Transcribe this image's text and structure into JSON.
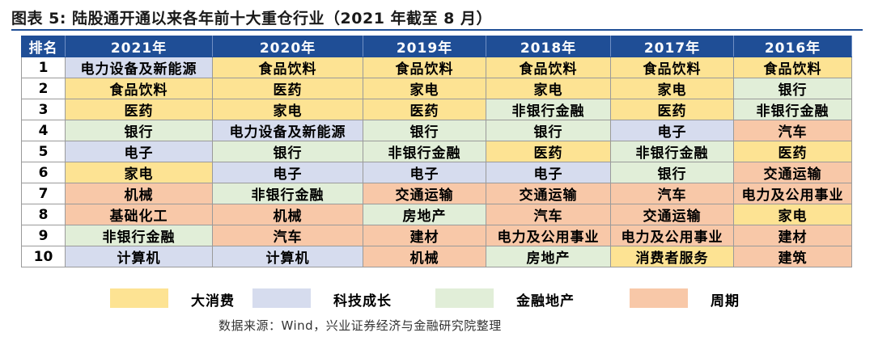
{
  "title": "图表 5: 陆股通开通以来各年前十大重仓行业（2021 年截至 8 月）",
  "header": {
    "rank": "排名",
    "years": [
      "2021年",
      "2020年",
      "2019年",
      "2018年",
      "2017年",
      "2016年"
    ]
  },
  "rows": [
    {
      "rank": "1",
      "cells": [
        {
          "text": "电力设备及新能源",
          "cat": "tech"
        },
        {
          "text": "食品饮料",
          "cat": "consumer"
        },
        {
          "text": "食品饮料",
          "cat": "consumer"
        },
        {
          "text": "食品饮料",
          "cat": "consumer"
        },
        {
          "text": "食品饮料",
          "cat": "consumer"
        },
        {
          "text": "食品饮料",
          "cat": "consumer"
        }
      ]
    },
    {
      "rank": "2",
      "cells": [
        {
          "text": "食品饮料",
          "cat": "consumer"
        },
        {
          "text": "医药",
          "cat": "consumer"
        },
        {
          "text": "家电",
          "cat": "consumer"
        },
        {
          "text": "家电",
          "cat": "consumer"
        },
        {
          "text": "家电",
          "cat": "consumer"
        },
        {
          "text": "银行",
          "cat": "finance"
        }
      ]
    },
    {
      "rank": "3",
      "cells": [
        {
          "text": "医药",
          "cat": "consumer"
        },
        {
          "text": "家电",
          "cat": "consumer"
        },
        {
          "text": "医药",
          "cat": "consumer"
        },
        {
          "text": "非银行金融",
          "cat": "finance"
        },
        {
          "text": "医药",
          "cat": "consumer"
        },
        {
          "text": "非银行金融",
          "cat": "finance"
        }
      ]
    },
    {
      "rank": "4",
      "cells": [
        {
          "text": "银行",
          "cat": "finance"
        },
        {
          "text": "电力设备及新能源",
          "cat": "tech"
        },
        {
          "text": "银行",
          "cat": "finance"
        },
        {
          "text": "银行",
          "cat": "finance"
        },
        {
          "text": "电子",
          "cat": "tech"
        },
        {
          "text": "汽车",
          "cat": "cycle"
        }
      ]
    },
    {
      "rank": "5",
      "cells": [
        {
          "text": "电子",
          "cat": "tech"
        },
        {
          "text": "银行",
          "cat": "finance"
        },
        {
          "text": "非银行金融",
          "cat": "finance"
        },
        {
          "text": "医药",
          "cat": "consumer"
        },
        {
          "text": "非银行金融",
          "cat": "finance"
        },
        {
          "text": "医药",
          "cat": "consumer"
        }
      ]
    },
    {
      "rank": "6",
      "cells": [
        {
          "text": "家电",
          "cat": "consumer"
        },
        {
          "text": "电子",
          "cat": "tech"
        },
        {
          "text": "电子",
          "cat": "tech"
        },
        {
          "text": "电子",
          "cat": "tech"
        },
        {
          "text": "银行",
          "cat": "finance"
        },
        {
          "text": "交通运输",
          "cat": "cycle"
        }
      ]
    },
    {
      "rank": "7",
      "cells": [
        {
          "text": "机械",
          "cat": "cycle"
        },
        {
          "text": "非银行金融",
          "cat": "finance"
        },
        {
          "text": "交通运输",
          "cat": "cycle"
        },
        {
          "text": "交通运输",
          "cat": "cycle"
        },
        {
          "text": "汽车",
          "cat": "cycle"
        },
        {
          "text": "电力及公用事业",
          "cat": "cycle"
        }
      ]
    },
    {
      "rank": "8",
      "cells": [
        {
          "text": "基础化工",
          "cat": "cycle"
        },
        {
          "text": "机械",
          "cat": "cycle"
        },
        {
          "text": "房地产",
          "cat": "finance"
        },
        {
          "text": "汽车",
          "cat": "cycle"
        },
        {
          "text": "交通运输",
          "cat": "cycle"
        },
        {
          "text": "家电",
          "cat": "consumer"
        }
      ]
    },
    {
      "rank": "9",
      "cells": [
        {
          "text": "非银行金融",
          "cat": "finance"
        },
        {
          "text": "汽车",
          "cat": "cycle"
        },
        {
          "text": "建材",
          "cat": "cycle"
        },
        {
          "text": "电力及公用事业",
          "cat": "cycle"
        },
        {
          "text": "电力及公用事业",
          "cat": "cycle"
        },
        {
          "text": "建材",
          "cat": "cycle"
        }
      ]
    },
    {
      "rank": "10",
      "cells": [
        {
          "text": "计算机",
          "cat": "tech"
        },
        {
          "text": "计算机",
          "cat": "tech"
        },
        {
          "text": "机械",
          "cat": "cycle"
        },
        {
          "text": "房地产",
          "cat": "finance"
        },
        {
          "text": "消费者服务",
          "cat": "consumer"
        },
        {
          "text": "建筑",
          "cat": "cycle"
        }
      ]
    }
  ],
  "colors": {
    "header_bg": "#1f4e96",
    "consumer": "#fde393",
    "tech": "#d6dcee",
    "finance": "#e1eed8",
    "cycle": "#f8c8a8"
  },
  "legend": [
    {
      "cat": "consumer",
      "label": "大消费"
    },
    {
      "cat": "tech",
      "label": "科技成长"
    },
    {
      "cat": "finance",
      "label": "金融地产"
    },
    {
      "cat": "cycle",
      "label": "周期"
    }
  ],
  "source": "数据来源：Wind，兴业证券经济与金融研究院整理"
}
